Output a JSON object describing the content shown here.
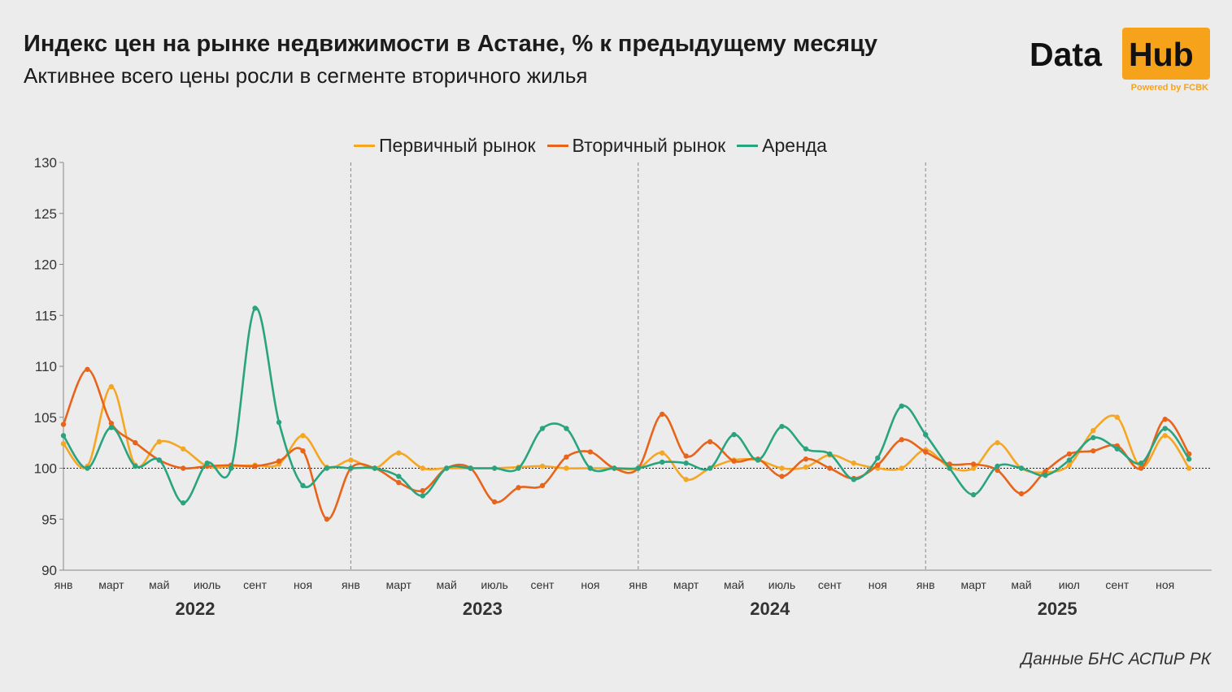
{
  "header": {
    "title": "Индекс цен на рынке недвижимости в Астане, % к предыдущему месяцу",
    "subtitle": "Активнее всего цены росли в сегменте вторичного жилья"
  },
  "logo": {
    "word1": "Data",
    "word2": "Hub",
    "powered": "Powered by FCBK",
    "accent": "#f7a21b"
  },
  "source": "Данные БНС АСПиР РК",
  "chart_data": {
    "type": "line",
    "title": "Индекс цен на рынке недвижимости в Астане, % к предыдущему месяцу",
    "subtitle": "Активнее всего цены росли в сегменте вторичного жилья",
    "ylim": [
      90,
      130
    ],
    "yticks": [
      90,
      95,
      100,
      105,
      110,
      115,
      120,
      125,
      130
    ],
    "baseline": 100,
    "x_labels": [
      "янв",
      "",
      "март",
      "",
      "май",
      "",
      "июль",
      "",
      "сент",
      "",
      "ноя",
      "",
      "янв",
      "",
      "март",
      "",
      "май",
      "",
      "июль",
      "",
      "сент",
      "",
      "ноя",
      "",
      "янв",
      "",
      "март",
      "",
      "май",
      "",
      "июль",
      "",
      "сент",
      "",
      "ноя",
      "",
      "янв",
      "",
      "март",
      "",
      "май",
      "",
      "июл",
      "",
      "сент",
      "",
      "ноя",
      ""
    ],
    "years": [
      "2022",
      "2023",
      "2024",
      "2025"
    ],
    "legend_position": "top-center",
    "series": [
      {
        "name": "Первичный рынок",
        "color": "#f5a623",
        "values": [
          102.4,
          100.2,
          108.0,
          100.3,
          102.6,
          101.9,
          100.2,
          100.2,
          100.3,
          100.4,
          103.2,
          100.1,
          100.8,
          100.0,
          101.5,
          100.0,
          100.0,
          100.0,
          100.0,
          100.1,
          100.2,
          100.0,
          100.0,
          100.0,
          100.0,
          101.5,
          98.9,
          100.0,
          100.8,
          100.8,
          100.0,
          100.1,
          101.3,
          100.5,
          100.0,
          100.0,
          101.8,
          100.1,
          100.0,
          102.5,
          100.0,
          99.6,
          100.3,
          103.7,
          105.0,
          100.1,
          103.2,
          100.0
        ]
      },
      {
        "name": "Вторичный рынок",
        "color": "#e8641b",
        "values": [
          104.3,
          109.7,
          104.4,
          102.5,
          100.8,
          100.0,
          100.2,
          100.3,
          100.2,
          100.7,
          101.7,
          95.0,
          100.0,
          100.0,
          98.6,
          97.8,
          100.0,
          100.0,
          96.7,
          98.1,
          98.3,
          101.1,
          101.6,
          100.0,
          100.0,
          105.3,
          101.2,
          102.6,
          100.7,
          100.9,
          99.2,
          100.9,
          100.0,
          99.0,
          100.3,
          102.8,
          101.6,
          100.4,
          100.4,
          99.8,
          97.5,
          99.7,
          101.4,
          101.7,
          102.2,
          100.0,
          104.8,
          101.4
        ]
      },
      {
        "name": "Аренда",
        "color": "#2aa37f",
        "values": [
          103.2,
          100.0,
          104.0,
          100.2,
          100.8,
          96.6,
          100.5,
          100.0,
          115.7,
          104.5,
          98.3,
          100.0,
          100.0,
          100.0,
          99.2,
          97.3,
          100.0,
          100.0,
          100.0,
          100.0,
          103.9,
          103.9,
          100.0,
          100.0,
          100.0,
          100.6,
          100.5,
          100.0,
          103.3,
          100.8,
          104.1,
          101.9,
          101.4,
          98.9,
          101.0,
          106.1,
          103.3,
          100.0,
          97.4,
          100.2,
          100.0,
          99.3,
          100.8,
          103.0,
          101.9,
          100.5,
          103.9,
          100.9
        ]
      }
    ]
  }
}
